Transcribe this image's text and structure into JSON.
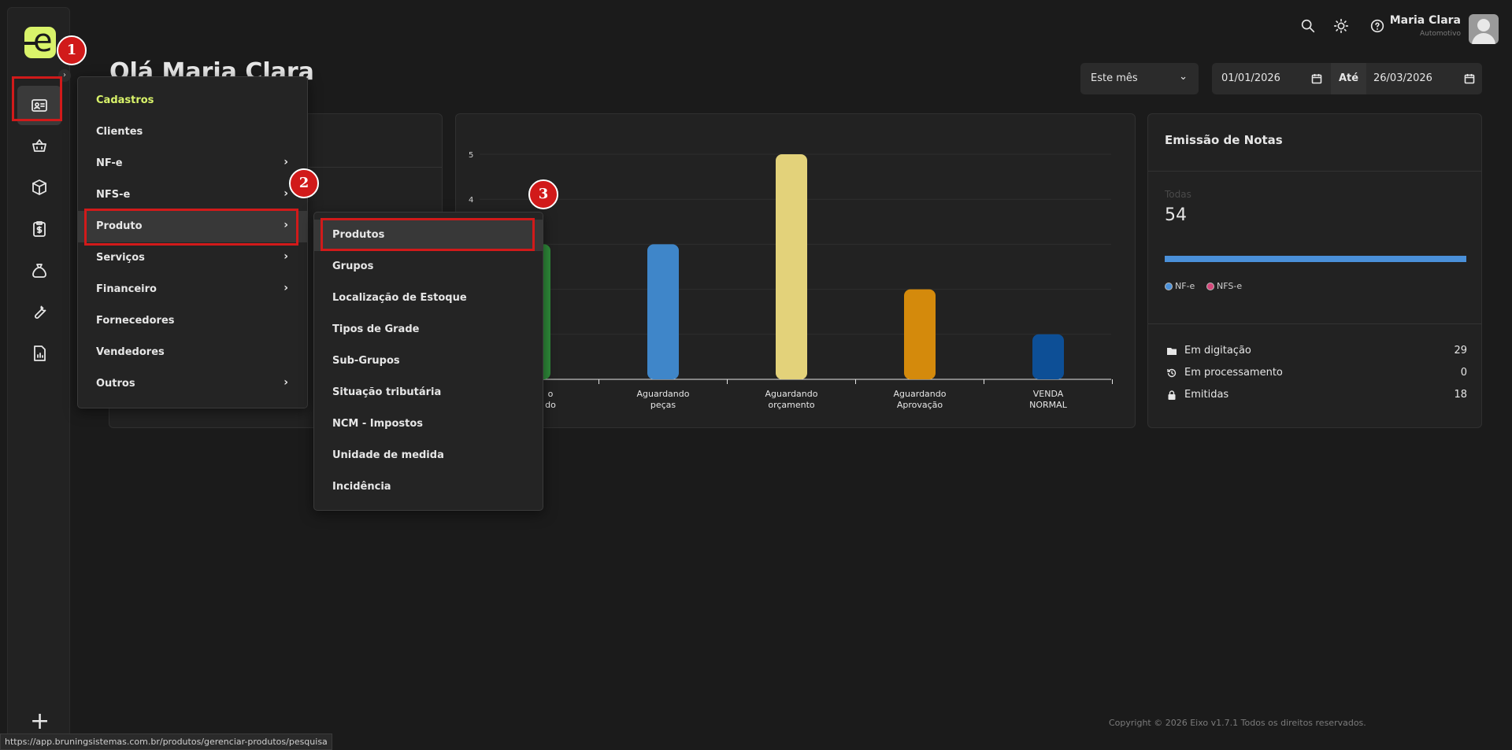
{
  "header": {
    "greeting": "Olá Maria Clara",
    "user_name": "Maria Clara",
    "user_role": "Automotivo",
    "period_select": "Este mês",
    "date_from": "01/01/2026",
    "date_to_label": "Até",
    "date_to": "26/03/2026"
  },
  "sidebar": {
    "expand_arrow": "›",
    "add_label": "+",
    "icons": [
      "id-card-icon",
      "basket-icon",
      "box-icon",
      "clipboard-dollar-icon",
      "money-bag-icon",
      "wrench-icon",
      "report-icon"
    ]
  },
  "menu_main": {
    "heading": "Cadastros",
    "items": [
      {
        "label": "Clientes",
        "arrow": ""
      },
      {
        "label": "NF-e",
        "arrow": "›"
      },
      {
        "label": "NFS-e",
        "arrow": "›"
      },
      {
        "label": "Produto",
        "arrow": "›"
      },
      {
        "label": "Serviços",
        "arrow": "›"
      },
      {
        "label": "Financeiro",
        "arrow": "›"
      },
      {
        "label": "Fornecedores",
        "arrow": ""
      },
      {
        "label": "Vendedores",
        "arrow": ""
      },
      {
        "label": "Outros",
        "arrow": "›"
      }
    ]
  },
  "menu_produto": {
    "items": [
      "Produtos",
      "Grupos",
      "Localização de Estoque",
      "Tipos de Grade",
      "Sub-Grupos",
      "Situação tributária",
      "NCM - Impostos",
      "Unidade de medida",
      "Incidência"
    ]
  },
  "callouts": [
    "1",
    "2",
    "3"
  ],
  "chart_data": {
    "type": "bar",
    "title": "",
    "categories": [
      "...do",
      "Aguardando peças",
      "Aguardando orçamento",
      "Aguardando Aprovação",
      "VENDA NORMAL"
    ],
    "category_lines": [
      [
        "o",
        "do"
      ],
      [
        "Aguardando",
        "peças"
      ],
      [
        "Aguardando",
        "orçamento"
      ],
      [
        "Aguardando",
        "Aprovação"
      ],
      [
        "VENDA",
        "NORMAL"
      ]
    ],
    "values": [
      3,
      3,
      5,
      2,
      1
    ],
    "colors": [
      "#2f8a3a",
      "#3f86c9",
      "#e3d27a",
      "#d48a0c",
      "#0d4f96"
    ],
    "y_ticks": [
      "5",
      "4"
    ],
    "ylim": [
      0,
      5
    ]
  },
  "notes_card": {
    "title": "Emissão de Notas",
    "total_label": "Todas",
    "total_value": "54",
    "progress_fraction": 1.0,
    "legend": [
      {
        "label": "NF-e",
        "color": "#4a90d9"
      },
      {
        "label": "NFS-e",
        "color": "#d4487a"
      }
    ],
    "stats": [
      {
        "label": "Em digitação",
        "value": "29"
      },
      {
        "label": "Em processamento",
        "value": "0"
      },
      {
        "label": "Emitidas",
        "value": "18"
      }
    ]
  },
  "footer": {
    "copyright": "Copyright © 2026 Eixo v1.7.1 Todos os direitos reservados.",
    "status_url": "https://app.bruningsistemas.com.br/produtos/gerenciar-produtos/pesquisa"
  }
}
